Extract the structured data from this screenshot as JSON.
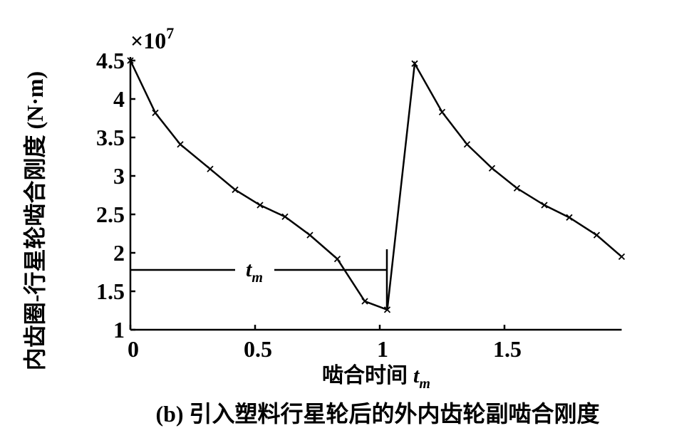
{
  "chart_data": {
    "type": "line",
    "caption": "(b) 引入塑料行星轮后的外内齿轮副啮合刚度",
    "xlabel": "啮合时间",
    "xlabel_symbol": "t",
    "xlabel_subscript": "m",
    "ylabel": "内齿圈-行星轮啮合刚度 (N·m)",
    "scale_label": "×10",
    "scale_exponent": "7",
    "annotation": {
      "text": "t",
      "subscript": "m"
    },
    "xlim": [
      0,
      1.97
    ],
    "ylim": [
      1,
      4.5
    ],
    "xticks": [
      0,
      0.5,
      1,
      1.5
    ],
    "yticks": [
      1,
      1.5,
      2,
      2.5,
      3,
      3.5,
      4,
      4.5
    ],
    "x": [
      0,
      0.1,
      0.2,
      0.32,
      0.42,
      0.52,
      0.62,
      0.72,
      0.83,
      0.94,
      1.03,
      1.14,
      1.25,
      1.35,
      1.45,
      1.55,
      1.66,
      1.76,
      1.87,
      1.97
    ],
    "series": [
      {
        "color": "#000000",
        "values": [
          4.5,
          3.82,
          3.41,
          3.09,
          2.82,
          2.62,
          2.47,
          2.23,
          1.92,
          1.37,
          1.26,
          4.46,
          3.83,
          3.41,
          3.1,
          2.84,
          2.62,
          2.46,
          2.23,
          1.95
        ]
      }
    ]
  }
}
